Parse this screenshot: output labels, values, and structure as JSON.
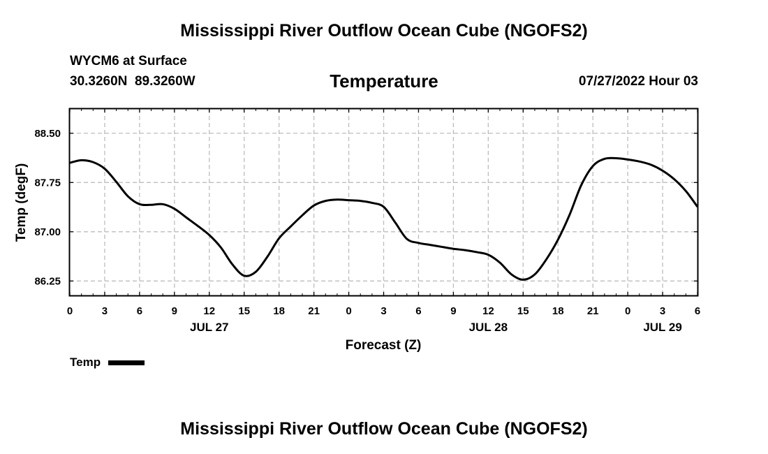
{
  "title": "Mississippi River Outflow Ocean Cube (NGOFS2)",
  "footer_title": "Mississippi River Outflow Ocean Cube (NGOFS2)",
  "station": {
    "name_line": "WYCM6 at Surface",
    "lat": "30.3260N",
    "lon": "89.3260W"
  },
  "timestamp": "07/27/2022 Hour 03",
  "legend": {
    "label": "Temp",
    "color": "#000000"
  },
  "chart_data": {
    "type": "line",
    "title": "Temperature",
    "xlabel": "Forecast (Z)",
    "ylabel": "Temp (degF)",
    "xlim": [
      0,
      54
    ],
    "ylim": [
      86.03,
      88.87
    ],
    "grid": true,
    "x_tick_values": [
      0,
      3,
      6,
      9,
      12,
      15,
      18,
      21,
      24,
      27,
      30,
      33,
      36,
      39,
      42,
      45,
      48,
      51,
      54
    ],
    "x_tick_labels": [
      "0",
      "3",
      "6",
      "9",
      "12",
      "15",
      "18",
      "21",
      "0",
      "3",
      "6",
      "9",
      "12",
      "15",
      "18",
      "21",
      "0",
      "3",
      "6"
    ],
    "date_labels": [
      {
        "x": 12,
        "label": "JUL 27"
      },
      {
        "x": 36,
        "label": "JUL 28"
      },
      {
        "x": 51,
        "label": "JUL 29"
      }
    ],
    "y_ticks": [
      86.25,
      87.0,
      87.75,
      88.5
    ],
    "y_tick_labels": [
      "86.25",
      "87.00",
      "87.75",
      "88.50"
    ],
    "series": [
      {
        "name": "Temp",
        "color": "#000000",
        "x": [
          0,
          1,
          2,
          3,
          4,
          5,
          6,
          7,
          8,
          9,
          10,
          11,
          12,
          13,
          14,
          15,
          16,
          17,
          18,
          19,
          20,
          21,
          22,
          23,
          24,
          25,
          26,
          27,
          28,
          29,
          30,
          31,
          32,
          33,
          34,
          35,
          36,
          37,
          38,
          39,
          40,
          41,
          42,
          43,
          44,
          45,
          46,
          47,
          48,
          49,
          50,
          51,
          52,
          53,
          54
        ],
        "y": [
          88.05,
          88.09,
          88.06,
          87.96,
          87.76,
          87.54,
          87.42,
          87.41,
          87.42,
          87.35,
          87.22,
          87.09,
          86.95,
          86.76,
          86.5,
          86.33,
          86.39,
          86.62,
          86.9,
          87.08,
          87.25,
          87.4,
          87.47,
          87.49,
          87.48,
          87.47,
          87.44,
          87.38,
          87.14,
          86.89,
          86.83,
          86.8,
          86.77,
          86.74,
          86.72,
          86.69,
          86.65,
          86.53,
          86.35,
          86.27,
          86.35,
          86.58,
          86.88,
          87.26,
          87.71,
          88.0,
          88.11,
          88.12,
          88.1,
          88.07,
          88.02,
          87.93,
          87.8,
          87.62,
          87.38
        ]
      }
    ]
  }
}
